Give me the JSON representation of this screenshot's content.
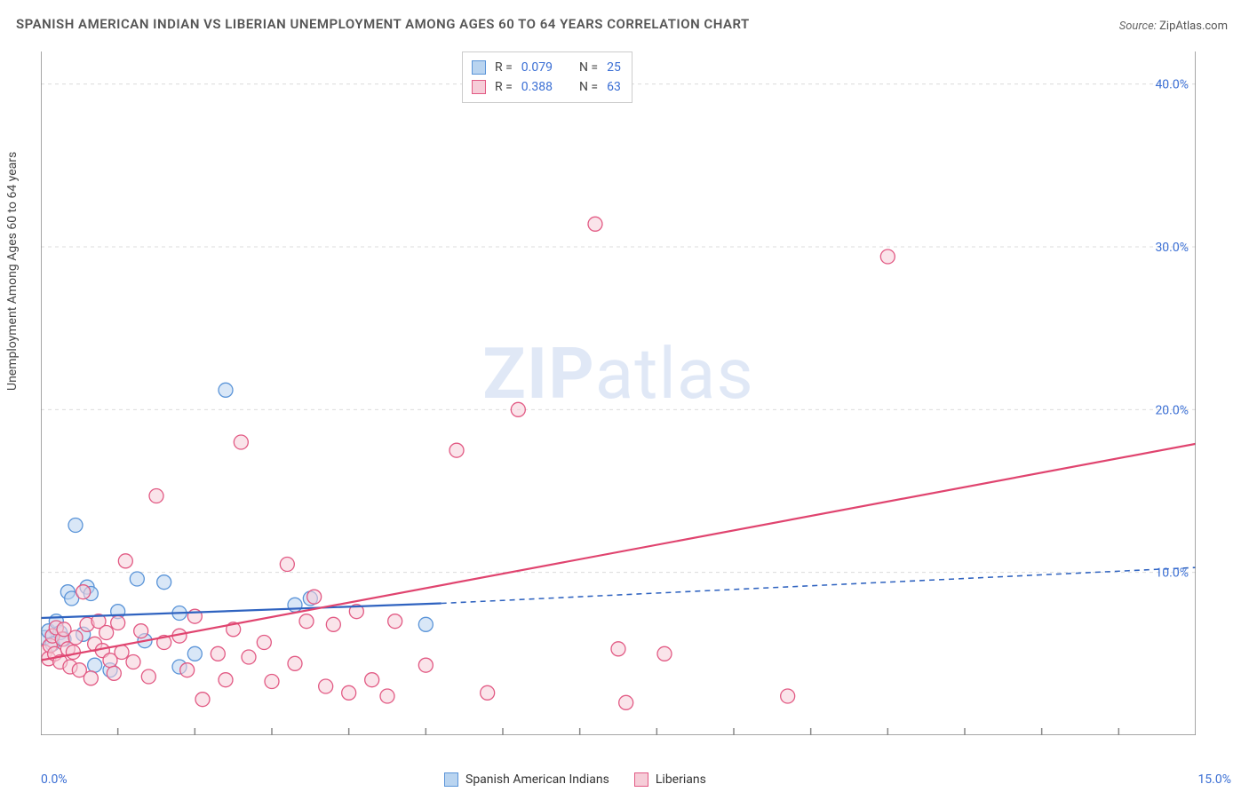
{
  "title": "SPANISH AMERICAN INDIAN VS LIBERIAN UNEMPLOYMENT AMONG AGES 60 TO 64 YEARS CORRELATION CHART",
  "source_label": "Source:",
  "source_value": "ZipAtlas.com",
  "y_axis_label": "Unemployment Among Ages 60 to 64 years",
  "watermark_a": "ZIP",
  "watermark_b": "atlas",
  "chart": {
    "type": "scatter",
    "xlim": [
      0,
      15
    ],
    "ylim": [
      0,
      42
    ],
    "x_ticks": [
      0,
      15
    ],
    "x_tick_labels": [
      "0.0%",
      "15.0%"
    ],
    "x_minor_ticks": [
      1,
      2,
      3,
      4,
      5,
      6,
      7,
      8,
      9,
      10,
      11,
      12,
      13,
      14
    ],
    "y_gridlines": [
      10,
      20,
      30,
      40
    ],
    "y_tick_labels": [
      "10.0%",
      "20.0%",
      "30.0%",
      "40.0%"
    ],
    "background_color": "#ffffff",
    "grid_color": "#dcdcdc",
    "axis_color": "#888888",
    "marker_radius": 8,
    "marker_stroke_width": 1.3,
    "series": [
      {
        "name": "Spanish American Indians",
        "fill": "#b9d4f0",
        "stroke": "#5a94d8",
        "r_value": "0.079",
        "n_value": "25",
        "trend": {
          "x1": 0,
          "y1": 7.2,
          "x2": 5.2,
          "y2": 8.1,
          "dash_x2": 15,
          "dash_y2": 10.3,
          "color": "#2f63c0",
          "width": 2.2
        },
        "points": [
          [
            0.05,
            6.0
          ],
          [
            0.1,
            6.4
          ],
          [
            0.15,
            5.6
          ],
          [
            0.2,
            7.0
          ],
          [
            0.25,
            6.3
          ],
          [
            0.3,
            5.9
          ],
          [
            0.35,
            8.8
          ],
          [
            0.4,
            8.4
          ],
          [
            0.45,
            12.9
          ],
          [
            0.55,
            6.2
          ],
          [
            0.6,
            9.1
          ],
          [
            0.65,
            8.7
          ],
          [
            0.7,
            4.3
          ],
          [
            0.9,
            4.0
          ],
          [
            1.0,
            7.6
          ],
          [
            1.25,
            9.6
          ],
          [
            1.35,
            5.8
          ],
          [
            1.6,
            9.4
          ],
          [
            1.8,
            4.2
          ],
          [
            1.8,
            7.5
          ],
          [
            2.0,
            5.0
          ],
          [
            2.4,
            21.2
          ],
          [
            3.3,
            8.0
          ],
          [
            3.5,
            8.4
          ],
          [
            5.0,
            6.8
          ]
        ]
      },
      {
        "name": "Liberians",
        "fill": "#f6cdd8",
        "stroke": "#e25a84",
        "r_value": "0.388",
        "n_value": "63",
        "trend": {
          "x1": 0,
          "y1": 4.6,
          "x2": 15,
          "y2": 17.9,
          "color": "#e0446f",
          "width": 2.2
        },
        "points": [
          [
            0.05,
            5.1
          ],
          [
            0.1,
            4.7
          ],
          [
            0.12,
            5.5
          ],
          [
            0.15,
            6.1
          ],
          [
            0.18,
            5.0
          ],
          [
            0.2,
            6.6
          ],
          [
            0.25,
            4.5
          ],
          [
            0.28,
            5.9
          ],
          [
            0.3,
            6.5
          ],
          [
            0.35,
            5.3
          ],
          [
            0.38,
            4.2
          ],
          [
            0.42,
            5.1
          ],
          [
            0.45,
            6.0
          ],
          [
            0.5,
            4.0
          ],
          [
            0.55,
            8.8
          ],
          [
            0.6,
            6.8
          ],
          [
            0.65,
            3.5
          ],
          [
            0.7,
            5.6
          ],
          [
            0.75,
            7.0
          ],
          [
            0.8,
            5.2
          ],
          [
            0.85,
            6.3
          ],
          [
            0.9,
            4.6
          ],
          [
            0.95,
            3.8
          ],
          [
            1.0,
            6.9
          ],
          [
            1.05,
            5.1
          ],
          [
            1.1,
            10.7
          ],
          [
            1.2,
            4.5
          ],
          [
            1.3,
            6.4
          ],
          [
            1.4,
            3.6
          ],
          [
            1.5,
            14.7
          ],
          [
            1.6,
            5.7
          ],
          [
            1.8,
            6.1
          ],
          [
            1.9,
            4.0
          ],
          [
            2.0,
            7.3
          ],
          [
            2.1,
            2.2
          ],
          [
            2.3,
            5.0
          ],
          [
            2.4,
            3.4
          ],
          [
            2.5,
            6.5
          ],
          [
            2.6,
            18.0
          ],
          [
            2.7,
            4.8
          ],
          [
            2.9,
            5.7
          ],
          [
            3.0,
            3.3
          ],
          [
            3.2,
            10.5
          ],
          [
            3.3,
            4.4
          ],
          [
            3.45,
            7.0
          ],
          [
            3.55,
            8.5
          ],
          [
            3.7,
            3.0
          ],
          [
            3.8,
            6.8
          ],
          [
            4.0,
            2.6
          ],
          [
            4.1,
            7.6
          ],
          [
            4.3,
            3.4
          ],
          [
            4.5,
            2.4
          ],
          [
            4.6,
            7.0
          ],
          [
            5.0,
            4.3
          ],
          [
            5.4,
            17.5
          ],
          [
            5.8,
            2.6
          ],
          [
            6.2,
            20.0
          ],
          [
            7.2,
            31.4
          ],
          [
            7.5,
            5.3
          ],
          [
            7.6,
            2.0
          ],
          [
            8.1,
            5.0
          ],
          [
            9.7,
            2.4
          ],
          [
            11.0,
            29.4
          ]
        ]
      }
    ]
  }
}
